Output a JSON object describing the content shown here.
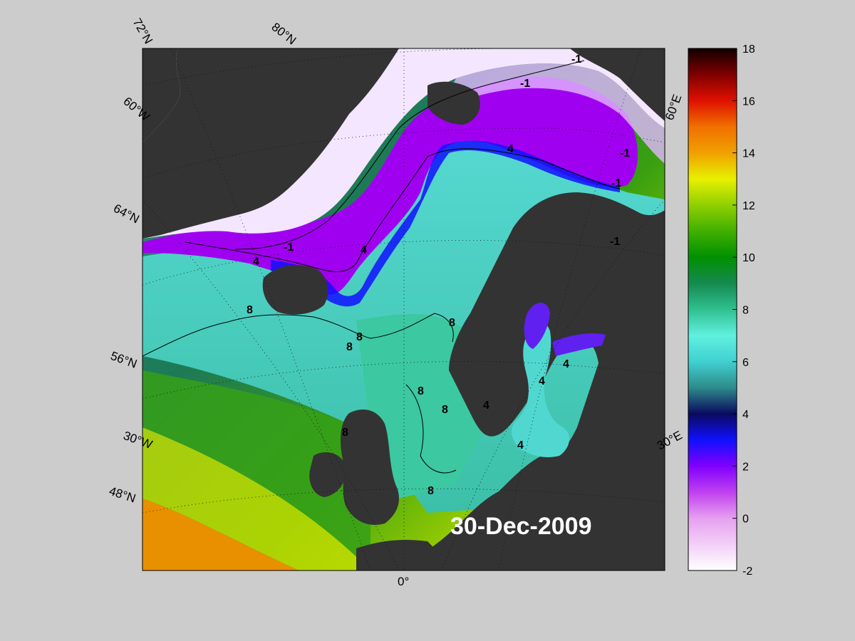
{
  "map": {
    "date_label": "30-Dec-2009",
    "colors": {
      "background": "#cccccc",
      "land": "#333333",
      "ice_shelf": "#777777"
    },
    "graticule_labels": {
      "lat_72": "72°N",
      "lat_80": "80°N",
      "lat_64": "64°N",
      "lat_56": "56°N",
      "lat_48": "48°N",
      "lon_60w": "60°W",
      "lon_30w": "30°W",
      "lon_0": "0°",
      "lon_30e": "30°E",
      "lon_60e": "60°E"
    },
    "contour_labels": {
      "c_minus1": "-1",
      "c_4": "4",
      "c_8": "8"
    }
  },
  "colorbar": {
    "min": -2,
    "max": 18,
    "ticks": [
      "18",
      "16",
      "14",
      "12",
      "10",
      "8",
      "6",
      "4",
      "2",
      "0",
      "-2"
    ],
    "stops": [
      {
        "v": -2,
        "c": "#ffffff"
      },
      {
        "v": 0,
        "c": "#e6a0f0"
      },
      {
        "v": 1,
        "c": "#c040f0"
      },
      {
        "v": 2,
        "c": "#8000ff"
      },
      {
        "v": 3,
        "c": "#1010ff"
      },
      {
        "v": 4,
        "c": "#0a0a60"
      },
      {
        "v": 5,
        "c": "#2e8a8a"
      },
      {
        "v": 6,
        "c": "#40d0d0"
      },
      {
        "v": 7,
        "c": "#60f0e0"
      },
      {
        "v": 8,
        "c": "#30c090"
      },
      {
        "v": 9,
        "c": "#158a50"
      },
      {
        "v": 10,
        "c": "#009000"
      },
      {
        "v": 11,
        "c": "#40b000"
      },
      {
        "v": 12,
        "c": "#90d000"
      },
      {
        "v": 13,
        "c": "#e8f000"
      },
      {
        "v": 14,
        "c": "#f0a000"
      },
      {
        "v": 15,
        "c": "#f07000"
      },
      {
        "v": 16,
        "c": "#e01000"
      },
      {
        "v": 17,
        "c": "#800000"
      },
      {
        "v": 18,
        "c": "#100000"
      }
    ]
  }
}
